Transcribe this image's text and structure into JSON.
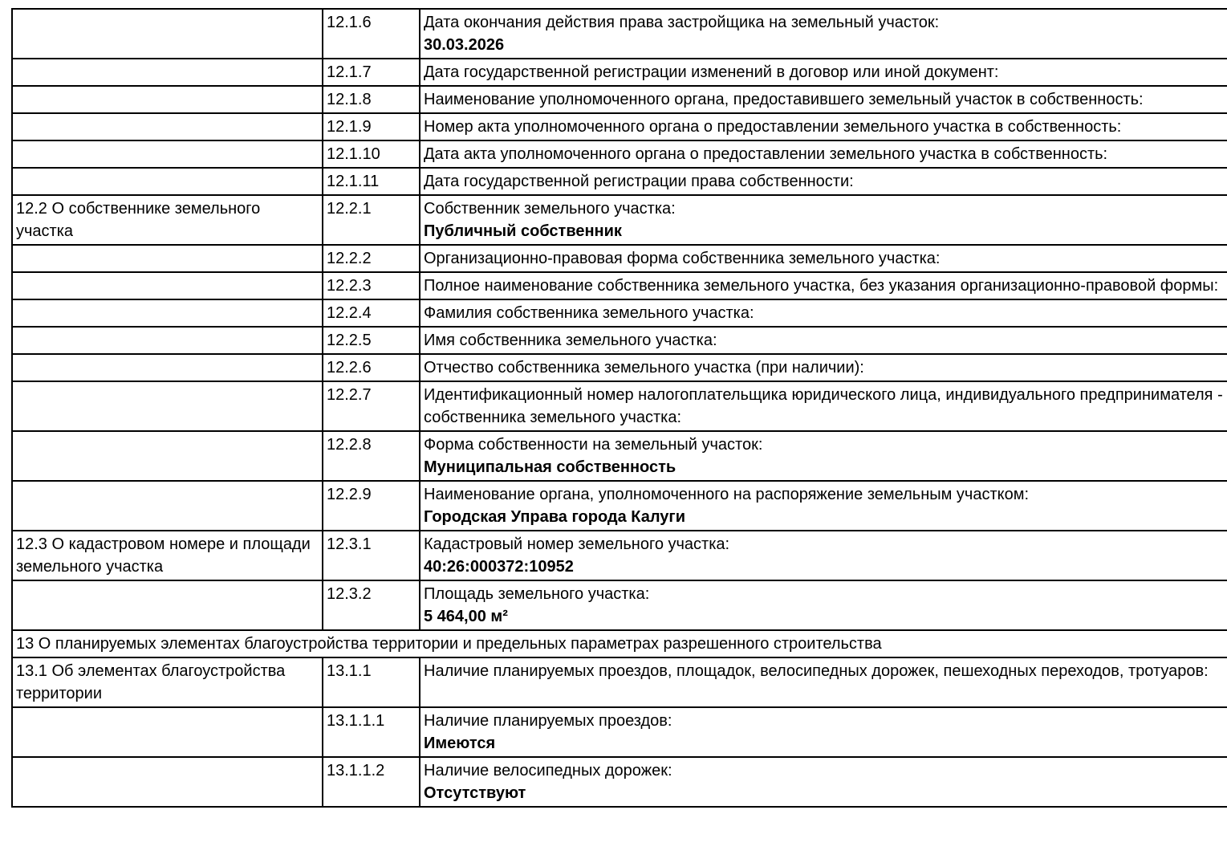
{
  "table": {
    "section13_header": "13 О планируемых элементах благоустройства территории и предельных параметрах разрешенного строительства",
    "rows": [
      {
        "section": "",
        "num": "12.1.6",
        "label": "Дата окончания действия права застройщика на земельный участок:",
        "value": "30.03.2026"
      },
      {
        "section": "",
        "num": "12.1.7",
        "label": "Дата государственной регистрации изменений в договор или иной документ:",
        "value": ""
      },
      {
        "section": "",
        "num": "12.1.8",
        "label": "Наименование уполномоченного органа, предоставившего земельный участок в собственность:",
        "value": ""
      },
      {
        "section": "",
        "num": "12.1.9",
        "label": "Номер акта уполномоченного органа о предоставлении земельного участка в собственность:",
        "value": ""
      },
      {
        "section": "",
        "num": "12.1.10",
        "label": "Дата акта уполномоченного органа о предоставлении земельного участка в собственность:",
        "value": ""
      },
      {
        "section": "",
        "num": "12.1.11",
        "label": "Дата государственной регистрации права собственности:",
        "value": ""
      },
      {
        "section": "12.2 О собственнике земельного участка",
        "num": "12.2.1",
        "label": "Собственник земельного участка:",
        "value": "Публичный собственник"
      },
      {
        "section": "",
        "num": "12.2.2",
        "label": "Организационно-правовая форма собственника земельного участка:",
        "value": ""
      },
      {
        "section": "",
        "num": "12.2.3",
        "label": "Полное наименование собственника земельного участка, без указания организационно-правовой формы:",
        "value": ""
      },
      {
        "section": "",
        "num": "12.2.4",
        "label": "Фамилия собственника земельного участка:",
        "value": ""
      },
      {
        "section": "",
        "num": "12.2.5",
        "label": "Имя собственника земельного участка:",
        "value": ""
      },
      {
        "section": "",
        "num": "12.2.6",
        "label": "Отчество собственника земельного участка (при наличии):",
        "value": ""
      },
      {
        "section": "",
        "num": "12.2.7",
        "label": "Идентификационный номер налогоплательщика юридического лица, индивидуального предпринимателя - собственника земельного участка:",
        "value": ""
      },
      {
        "section": "",
        "num": "12.2.8",
        "label": "Форма собственности на земельный участок:",
        "value": "Муниципальная собственность"
      },
      {
        "section": "",
        "num": "12.2.9",
        "label": "Наименование органа, уполномоченного на распоряжение земельным участком:",
        "value": "Городская Управа города Калуги"
      },
      {
        "section": "12.3 О кадастровом номере и площади земельного участка",
        "num": "12.3.1",
        "label": "Кадастровый номер земельного участка:",
        "value": "40:26:000372:10952"
      },
      {
        "section": "",
        "num": "12.3.2",
        "label": "Площадь земельного участка:",
        "value": "5 464,00 м²"
      },
      {
        "section": "13.1 Об элементах благоустройства территории",
        "num": "13.1.1",
        "label": "Наличие планируемых проездов, площадок, велосипедных дорожек, пешеходных переходов, тротуаров:",
        "value": ""
      },
      {
        "section": "",
        "num": "13.1.1.1",
        "label": "Наличие планируемых проездов:",
        "value": "Имеются"
      },
      {
        "section": "",
        "num": "13.1.1.2",
        "label": "Наличие велосипедных дорожек:",
        "value": "Отсутствуют"
      }
    ]
  }
}
